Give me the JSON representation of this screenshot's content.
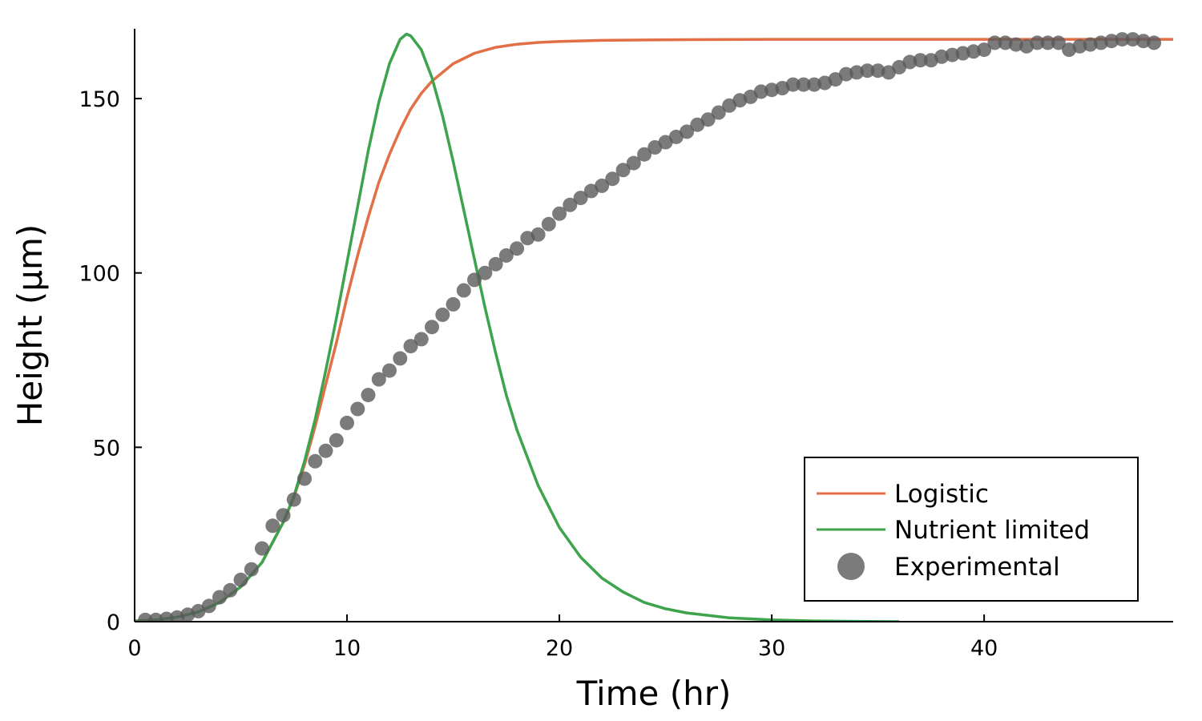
{
  "chart_data": {
    "type": "line",
    "title": "",
    "xlabel": "Time (hr)",
    "ylabel": "Height (μm)",
    "xlim": [
      0,
      48.9
    ],
    "ylim": [
      0,
      170
    ],
    "xticks": [
      0,
      10,
      20,
      30,
      40
    ],
    "yticks": [
      0,
      50,
      100,
      150
    ],
    "grid": false,
    "legend_position": "bottom-right",
    "series": [
      {
        "name": "Logistic",
        "kind": "line",
        "color": "#e26f46",
        "x": [
          0,
          1,
          2,
          3,
          4,
          5,
          6,
          7,
          7.5,
          8,
          8.5,
          9,
          9.5,
          10,
          10.5,
          11,
          11.5,
          12,
          12.5,
          13,
          13.5,
          14,
          15,
          16,
          17,
          18,
          19,
          20,
          22,
          24,
          26,
          30,
          35,
          40,
          45,
          48.9
        ],
        "y": [
          0.2,
          0.5,
          1.3,
          2.8,
          5.5,
          10,
          17,
          28.5,
          35.7,
          45,
          56,
          68,
          80,
          93,
          105,
          116,
          126,
          134,
          141,
          147,
          151.5,
          155,
          160,
          163,
          164.7,
          165.6,
          166.1,
          166.4,
          166.7,
          166.8,
          166.9,
          167,
          167,
          167,
          167,
          167
        ]
      },
      {
        "name": "Nutrient limited",
        "kind": "line",
        "color": "#3da44d",
        "x": [
          0,
          1,
          2,
          3,
          4,
          5,
          6,
          7,
          7.5,
          8,
          8.5,
          9,
          9.5,
          10,
          10.5,
          11,
          11.5,
          12,
          12.5,
          12.8,
          13,
          13.5,
          14,
          14.5,
          15,
          15.5,
          16,
          16.5,
          17,
          17.5,
          18,
          19,
          20,
          21,
          22,
          23,
          24,
          25,
          26,
          28,
          30,
          32,
          34,
          36
        ],
        "y": [
          0.2,
          0.5,
          1.3,
          2.8,
          5.5,
          10,
          17,
          28.5,
          36,
          46,
          58,
          72,
          87,
          103,
          119,
          135,
          149,
          160,
          167,
          168.5,
          168,
          164,
          156,
          145,
          132,
          118,
          104,
          90,
          77,
          65,
          55,
          39,
          27,
          18.5,
          12.5,
          8.5,
          5.5,
          3.7,
          2.5,
          1.1,
          0.5,
          0.2,
          0.1,
          0
        ]
      },
      {
        "name": "Experimental",
        "kind": "scatter",
        "color": "#5a5a5a",
        "x": [
          0.5,
          1,
          1.5,
          2,
          2.5,
          3,
          3.5,
          4,
          4.5,
          5,
          5.5,
          6,
          6.5,
          7,
          7.5,
          8,
          8.5,
          9,
          9.5,
          10,
          10.5,
          11,
          11.5,
          12,
          12.5,
          13,
          13.5,
          14,
          14.5,
          15,
          15.5,
          16,
          16.5,
          17,
          17.5,
          18,
          18.5,
          19,
          19.5,
          20,
          20.5,
          21,
          21.5,
          22,
          22.5,
          23,
          23.5,
          24,
          24.5,
          25,
          25.5,
          26,
          26.5,
          27,
          27.5,
          28,
          28.5,
          29,
          29.5,
          30,
          30.5,
          31,
          31.5,
          32,
          32.5,
          33,
          33.5,
          34,
          34.5,
          35,
          35.5,
          36,
          36.5,
          37,
          37.5,
          38,
          38.5,
          39,
          39.5,
          40,
          40.5,
          41,
          41.5,
          42,
          42.5,
          43,
          43.5,
          44,
          44.5,
          45,
          45.5,
          46,
          46.5,
          47,
          47.5,
          48
        ],
        "y": [
          0.5,
          0.5,
          0.8,
          1.2,
          2,
          3,
          4.5,
          7,
          9,
          12,
          15,
          21,
          27.5,
          30.5,
          35,
          41,
          46,
          49,
          52,
          57,
          61,
          65,
          69.5,
          72,
          75.5,
          79,
          81,
          84.5,
          88,
          91,
          95,
          98,
          100,
          102.5,
          105,
          107,
          110,
          111,
          114,
          117,
          119.5,
          121.5,
          123.5,
          125,
          127,
          129.5,
          131.5,
          134,
          136,
          137.5,
          139,
          140.5,
          142.5,
          144,
          146,
          148,
          149.5,
          150.5,
          152,
          152.5,
          153,
          154,
          154,
          154,
          154.5,
          155.5,
          157,
          157.5,
          158,
          158,
          157.5,
          159,
          160.5,
          161,
          161,
          162,
          162.5,
          163,
          163.5,
          164,
          166,
          166,
          165.5,
          165,
          166,
          166,
          166,
          164,
          165,
          165.5,
          166,
          166.5,
          167,
          167,
          166.5,
          166
        ]
      }
    ]
  }
}
